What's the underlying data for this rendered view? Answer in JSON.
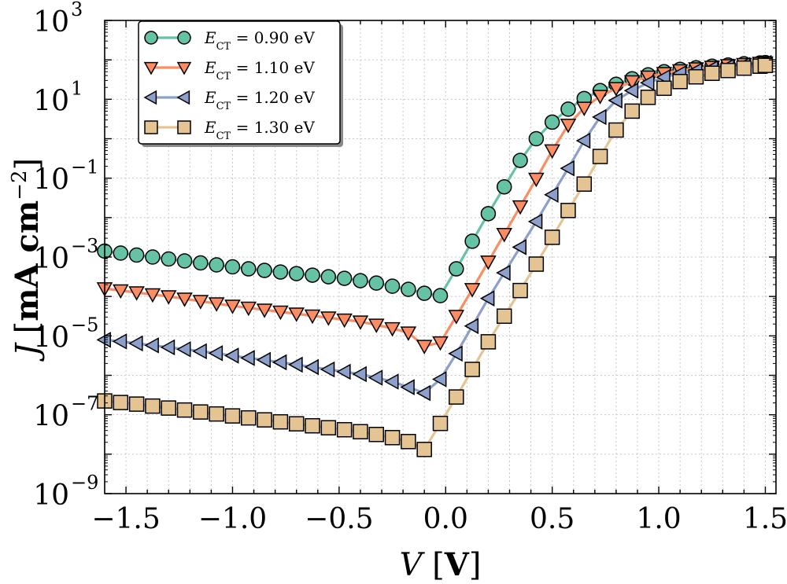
{
  "chart_data": {
    "type": "line",
    "xlabel": {
      "var": "V",
      "unit": "V"
    },
    "ylabel": {
      "var": "J",
      "unit": "mA cm",
      "exp": "−2"
    },
    "xlim": [
      -1.6,
      1.55
    ],
    "ylim_exp": [
      -9,
      3
    ],
    "yscale": "log",
    "grid": true,
    "legend_position": "top-left",
    "xticks": [
      {
        "value": -1.5,
        "label": "−1.5"
      },
      {
        "value": -1.0,
        "label": "−1.0"
      },
      {
        "value": -0.5,
        "label": "−0.5"
      },
      {
        "value": 0.0,
        "label": "0.0"
      },
      {
        "value": 0.5,
        "label": "0.5"
      },
      {
        "value": 1.0,
        "label": "1.0"
      },
      {
        "value": 1.5,
        "label": "1.5"
      }
    ],
    "yticks": [
      {
        "exp": 3,
        "label": "3"
      },
      {
        "exp": 1,
        "label": "1"
      },
      {
        "exp": -1,
        "label": "−1"
      },
      {
        "exp": -3,
        "label": "−3"
      },
      {
        "exp": -5,
        "label": "−5"
      },
      {
        "exp": -7,
        "label": "−7"
      },
      {
        "exp": -9,
        "label": "−9"
      }
    ],
    "x": [
      -1.6,
      -1.525,
      -1.45,
      -1.375,
      -1.3,
      -1.225,
      -1.15,
      -1.075,
      -1.0,
      -0.925,
      -0.85,
      -0.775,
      -0.7,
      -0.625,
      -0.55,
      -0.475,
      -0.4,
      -0.325,
      -0.25,
      -0.175,
      -0.1,
      -0.025,
      0.05,
      0.125,
      0.2,
      0.275,
      0.35,
      0.425,
      0.5,
      0.575,
      0.65,
      0.725,
      0.8,
      0.875,
      0.95,
      1.025,
      1.1,
      1.175,
      1.25,
      1.325,
      1.4,
      1.475,
      1.5
    ],
    "series": [
      {
        "name_var": "E",
        "name_sub": "CT",
        "name_value": " = 0.90 eV",
        "color": "#66c2a5",
        "marker": "circle",
        "y_log10": [
          -2.85,
          -2.9,
          -2.95,
          -3.0,
          -3.05,
          -3.1,
          -3.15,
          -3.2,
          -3.25,
          -3.3,
          -3.34,
          -3.38,
          -3.42,
          -3.46,
          -3.5,
          -3.54,
          -3.6,
          -3.66,
          -3.74,
          -3.82,
          -3.92,
          -3.98,
          -3.3,
          -2.6,
          -1.9,
          -1.22,
          -0.55,
          0.0,
          0.42,
          0.75,
          1.02,
          1.22,
          1.38,
          1.52,
          1.62,
          1.7,
          1.76,
          1.8,
          1.84,
          1.87,
          1.9,
          1.92,
          1.93
        ]
      },
      {
        "name_var": "E",
        "name_sub": "CT",
        "name_value": " = 1.10 eV",
        "color": "#fc8d62",
        "marker": "triangle-down",
        "y_log10": [
          -3.8,
          -3.85,
          -3.9,
          -3.95,
          -4.0,
          -4.06,
          -4.12,
          -4.18,
          -4.24,
          -4.29,
          -4.34,
          -4.39,
          -4.44,
          -4.49,
          -4.54,
          -4.59,
          -4.64,
          -4.72,
          -4.81,
          -4.92,
          -5.26,
          -5.17,
          -4.5,
          -3.82,
          -3.12,
          -2.42,
          -1.72,
          -1.02,
          -0.3,
          0.35,
          0.78,
          1.08,
          1.28,
          1.45,
          1.57,
          1.66,
          1.73,
          1.78,
          1.82,
          1.86,
          1.89,
          1.92,
          1.93
        ]
      },
      {
        "name_var": "E",
        "name_sub": "CT",
        "name_value": " = 1.20 eV",
        "color": "#8da0cb",
        "marker": "triangle-left",
        "y_log10": [
          -5.1,
          -5.14,
          -5.19,
          -5.24,
          -5.29,
          -5.34,
          -5.39,
          -5.44,
          -5.5,
          -5.56,
          -5.61,
          -5.67,
          -5.73,
          -5.79,
          -5.85,
          -5.91,
          -5.97,
          -6.06,
          -6.16,
          -6.3,
          -6.45,
          -6.1,
          -5.45,
          -4.75,
          -4.05,
          -3.4,
          -2.75,
          -2.1,
          -1.42,
          -0.75,
          -0.05,
          0.55,
          0.97,
          1.22,
          1.42,
          1.56,
          1.66,
          1.73,
          1.79,
          1.83,
          1.87,
          1.9,
          1.92
        ]
      },
      {
        "name_var": "E",
        "name_sub": "CT",
        "name_value": " = 1.30 eV",
        "color": "#e5c494",
        "marker": "square",
        "y_log10": [
          -6.65,
          -6.69,
          -6.73,
          -6.78,
          -6.83,
          -6.88,
          -6.93,
          -6.98,
          -7.03,
          -7.08,
          -7.13,
          -7.18,
          -7.23,
          -7.28,
          -7.33,
          -7.38,
          -7.43,
          -7.5,
          -7.58,
          -7.68,
          -7.88,
          -7.22,
          -6.55,
          -5.85,
          -5.15,
          -4.5,
          -3.85,
          -3.18,
          -2.5,
          -1.82,
          -1.15,
          -0.45,
          0.22,
          0.7,
          1.05,
          1.28,
          1.45,
          1.57,
          1.66,
          1.73,
          1.79,
          1.84,
          1.86
        ]
      }
    ]
  }
}
